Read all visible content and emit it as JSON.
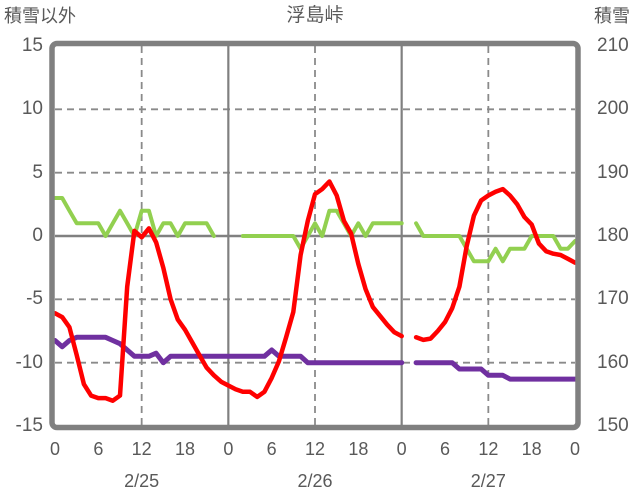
{
  "header": {
    "left_axis_title": "積雪以外",
    "chart_title": "浮島峠",
    "right_axis_title": "積雪"
  },
  "colors": {
    "frame_gray": "#808080",
    "grid_gray": "#8a8a8a",
    "text_gray": "#595959",
    "red_series": "#ff0000",
    "green_series": "#92d050",
    "purple_series": "#7030a0",
    "background": "#ffffff"
  },
  "chart_data": {
    "type": "line",
    "title": "浮島峠",
    "x_axis": {
      "unit": "hour",
      "start_hour": 0,
      "end_hour": 72,
      "tick_interval_hours": 6,
      "tick_labels": [
        "0",
        "6",
        "12",
        "18",
        "0",
        "6",
        "12",
        "18",
        "0",
        "6",
        "12",
        "18",
        "0"
      ],
      "day_labels": [
        "2/25",
        "2/26",
        "2/27"
      ],
      "day_label_center_hours": [
        12,
        36,
        60
      ],
      "dashed_gridline_hours": [
        12,
        36,
        60
      ],
      "solid_gridline_hours": [
        24,
        48
      ]
    },
    "left_axis": {
      "title": "積雪以外",
      "min": -15,
      "max": 15,
      "ticks": [
        15,
        10,
        5,
        0,
        -5,
        -10,
        -15
      ],
      "dashed_gridlines": [
        10,
        5,
        -5,
        -10
      ],
      "solid_gridlines": [
        0
      ]
    },
    "right_axis": {
      "title": "積雪",
      "min": 150,
      "max": 210,
      "ticks": [
        210,
        200,
        190,
        180,
        170,
        160,
        150
      ]
    },
    "series": [
      {
        "name": "green-line",
        "axis": "left",
        "color": "#92d050",
        "stroke_width": 4,
        "values": [
          3,
          3,
          2,
          1,
          1,
          1,
          1,
          0,
          1,
          2,
          1,
          0,
          2,
          2,
          0,
          1,
          1,
          0,
          1,
          1,
          1,
          1,
          0,
          null,
          null,
          null,
          0,
          0,
          0,
          0,
          0,
          0,
          0,
          0,
          -1,
          0,
          1,
          0,
          2,
          2,
          1,
          0,
          1,
          0,
          1,
          1,
          1,
          1,
          1,
          null,
          1,
          0,
          0,
          0,
          0,
          0,
          0,
          -1,
          -2,
          -2,
          -2,
          -1,
          -2,
          -1,
          -1,
          -1,
          0,
          0,
          0,
          0,
          -1,
          -1,
          -0.4
        ]
      },
      {
        "name": "purple-line",
        "axis": "right",
        "color": "#7030a0",
        "stroke_width": 5,
        "values": [
          163.5,
          162.5,
          163.5,
          164,
          164,
          164,
          164,
          164,
          163.5,
          163,
          162,
          161,
          161,
          161,
          161.5,
          160,
          161,
          161,
          161,
          161,
          161,
          161,
          161,
          161,
          161,
          161,
          161,
          161,
          161,
          161,
          162,
          161,
          161,
          161,
          161,
          160,
          160,
          160,
          160,
          160,
          160,
          160,
          160,
          160,
          160,
          160,
          160,
          160,
          160,
          null,
          160,
          160,
          160,
          160,
          160,
          160,
          159,
          159,
          159,
          159,
          158,
          158,
          158,
          157.4,
          157.4,
          157.4,
          157.4,
          157.4,
          157.4,
          157.4,
          157.4,
          157.4,
          157.4
        ]
      },
      {
        "name": "red-line",
        "axis": "left",
        "color": "#ff0000",
        "stroke_width": 4.5,
        "values": [
          -6.1,
          -6.4,
          -7.2,
          -9.4,
          -11.7,
          -12.6,
          -12.8,
          -12.8,
          -13,
          -12.6,
          -4,
          0.4,
          -0.1,
          0.6,
          -0.5,
          -2.5,
          -5,
          -6.6,
          -7.4,
          -8.4,
          -9.4,
          -10.4,
          -11,
          -11.5,
          -11.8,
          -12.1,
          -12.3,
          -12.3,
          -12.7,
          -12.3,
          -11.2,
          -9.9,
          -8,
          -6,
          -1.5,
          1.2,
          3.3,
          3.7,
          4.3,
          3.2,
          1.2,
          0.2,
          -2.2,
          -4.2,
          -5.6,
          -6.3,
          -7,
          -7.6,
          -7.9,
          null,
          -8,
          -8.2,
          -8.1,
          -7.5,
          -6.8,
          -5.7,
          -4,
          -0.8,
          1.6,
          2.8,
          3.2,
          3.5,
          3.7,
          3.2,
          2.5,
          1.5,
          0.9,
          -0.6,
          -1.2,
          -1.4,
          -1.5,
          -1.8,
          -2.1
        ]
      }
    ]
  }
}
